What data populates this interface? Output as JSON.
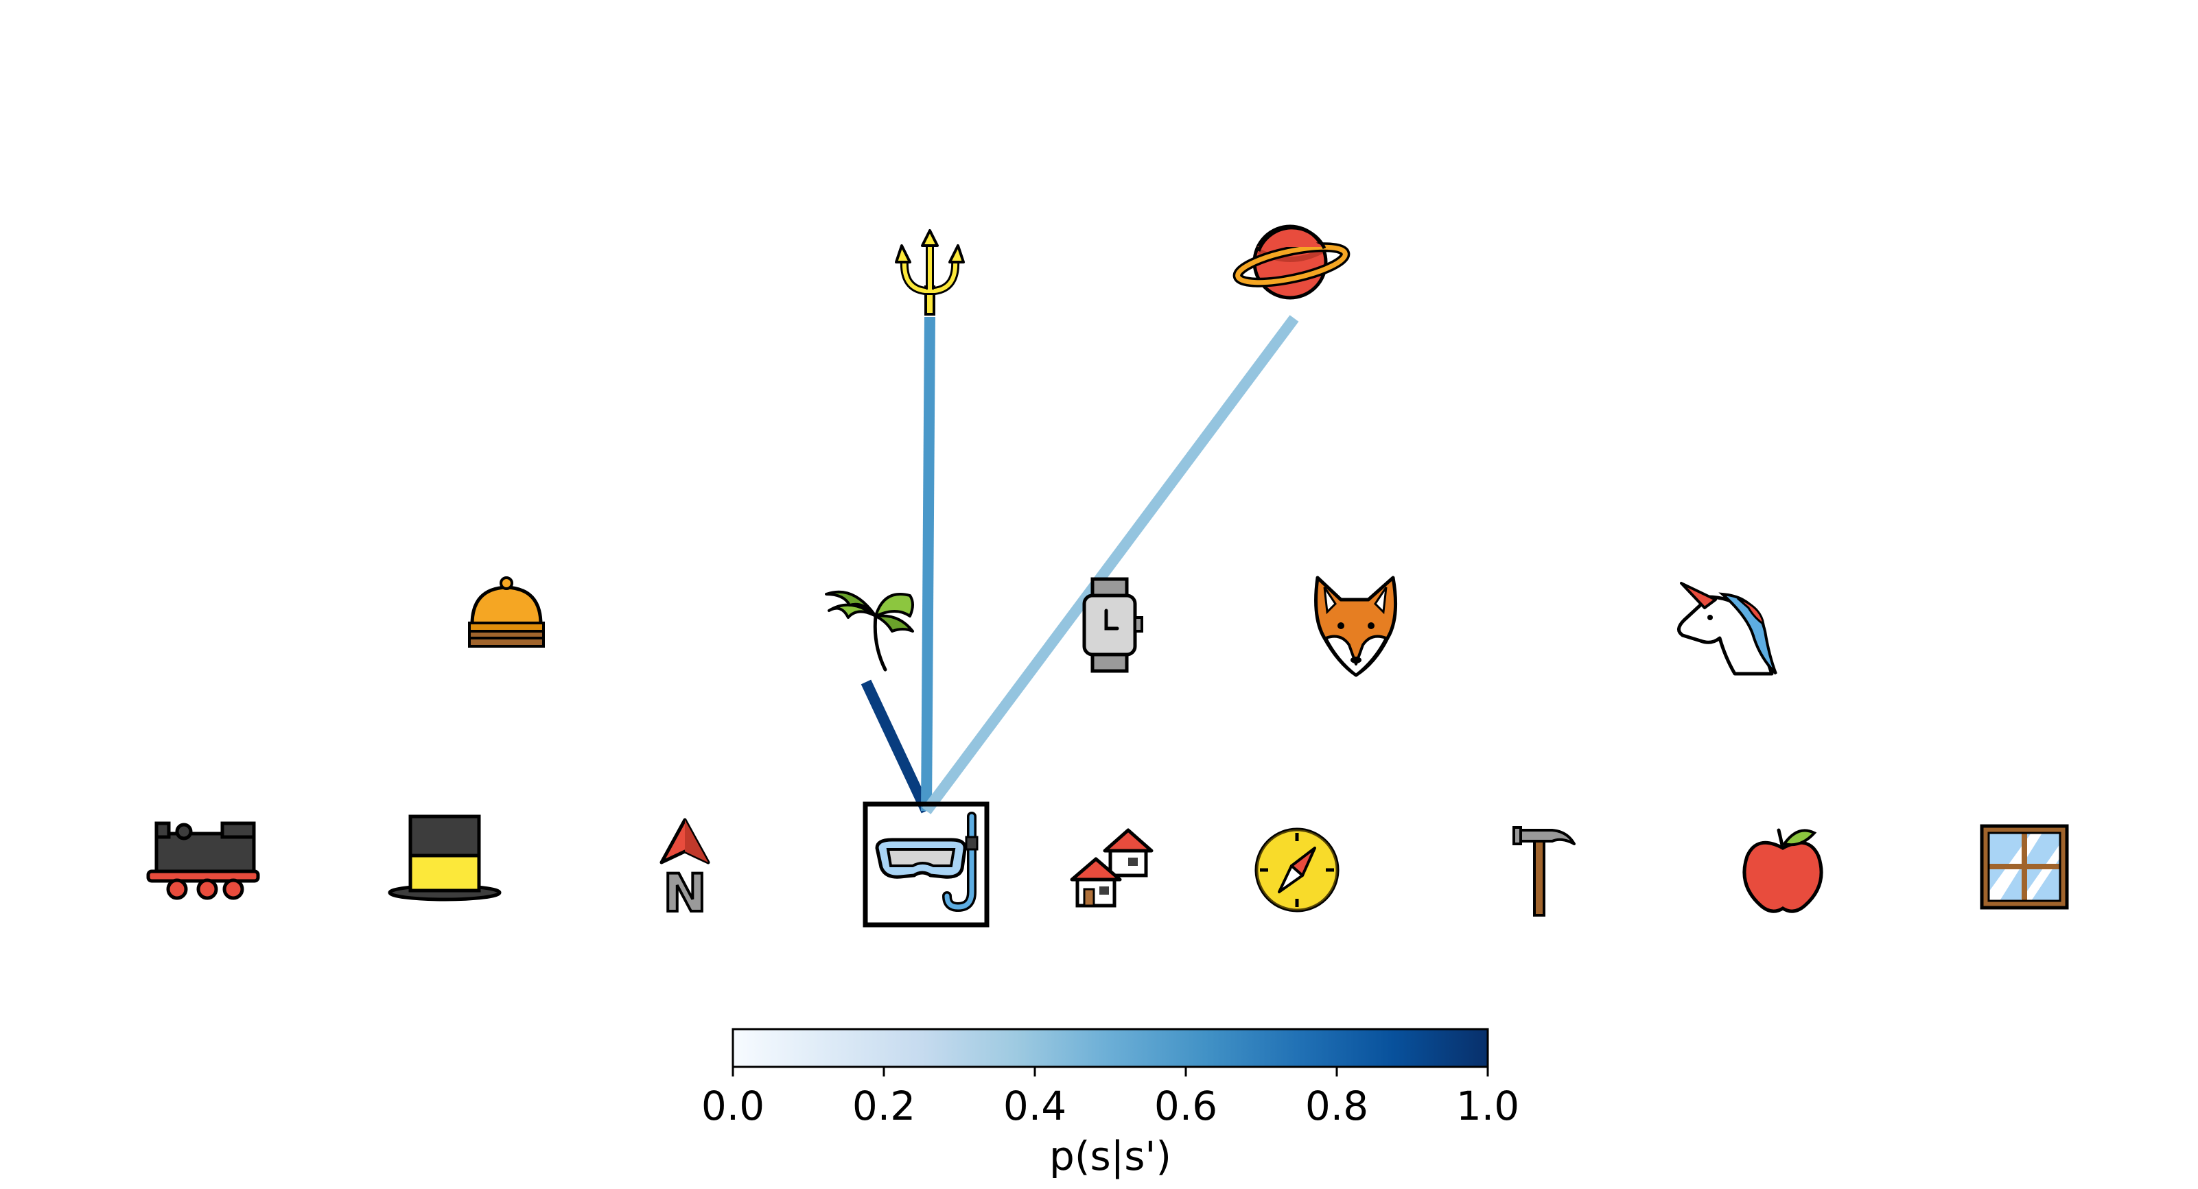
{
  "graph": {
    "nodes": [
      {
        "id": "train",
        "name": "train-icon"
      },
      {
        "id": "tophat",
        "name": "top-hat-icon"
      },
      {
        "id": "north",
        "name": "north-arrow-icon"
      },
      {
        "id": "snorkel",
        "name": "snorkel-mask-icon",
        "selected": true
      },
      {
        "id": "houses",
        "name": "houses-icon"
      },
      {
        "id": "compass",
        "name": "compass-icon"
      },
      {
        "id": "hammer",
        "name": "hammer-icon"
      },
      {
        "id": "apple",
        "name": "apple-icon"
      },
      {
        "id": "window",
        "name": "window-icon"
      },
      {
        "id": "bell",
        "name": "service-bell-icon"
      },
      {
        "id": "palm",
        "name": "palm-tree-icon"
      },
      {
        "id": "watch",
        "name": "watch-icon"
      },
      {
        "id": "fox",
        "name": "fox-icon"
      },
      {
        "id": "unicorn",
        "name": "unicorn-icon"
      },
      {
        "id": "trident",
        "name": "trident-icon"
      },
      {
        "id": "planet",
        "name": "planet-icon"
      }
    ],
    "edges": [
      {
        "from": "snorkel",
        "to": "palm",
        "p": 0.95
      },
      {
        "from": "snorkel",
        "to": "trident",
        "p": 0.6
      },
      {
        "from": "snorkel",
        "to": "planet",
        "p": 0.4
      }
    ]
  },
  "colorbar": {
    "label": "p(s|s')",
    "ticks": [
      "0.0",
      "0.2",
      "0.4",
      "0.6",
      "0.8",
      "1.0"
    ],
    "range": [
      0,
      1
    ],
    "colormap": "Blues",
    "stops": [
      "#f7fbff",
      "#deebf7",
      "#c6dbef",
      "#9ecae1",
      "#6baed6",
      "#4292c6",
      "#2171b5",
      "#08519c",
      "#08306b"
    ]
  }
}
